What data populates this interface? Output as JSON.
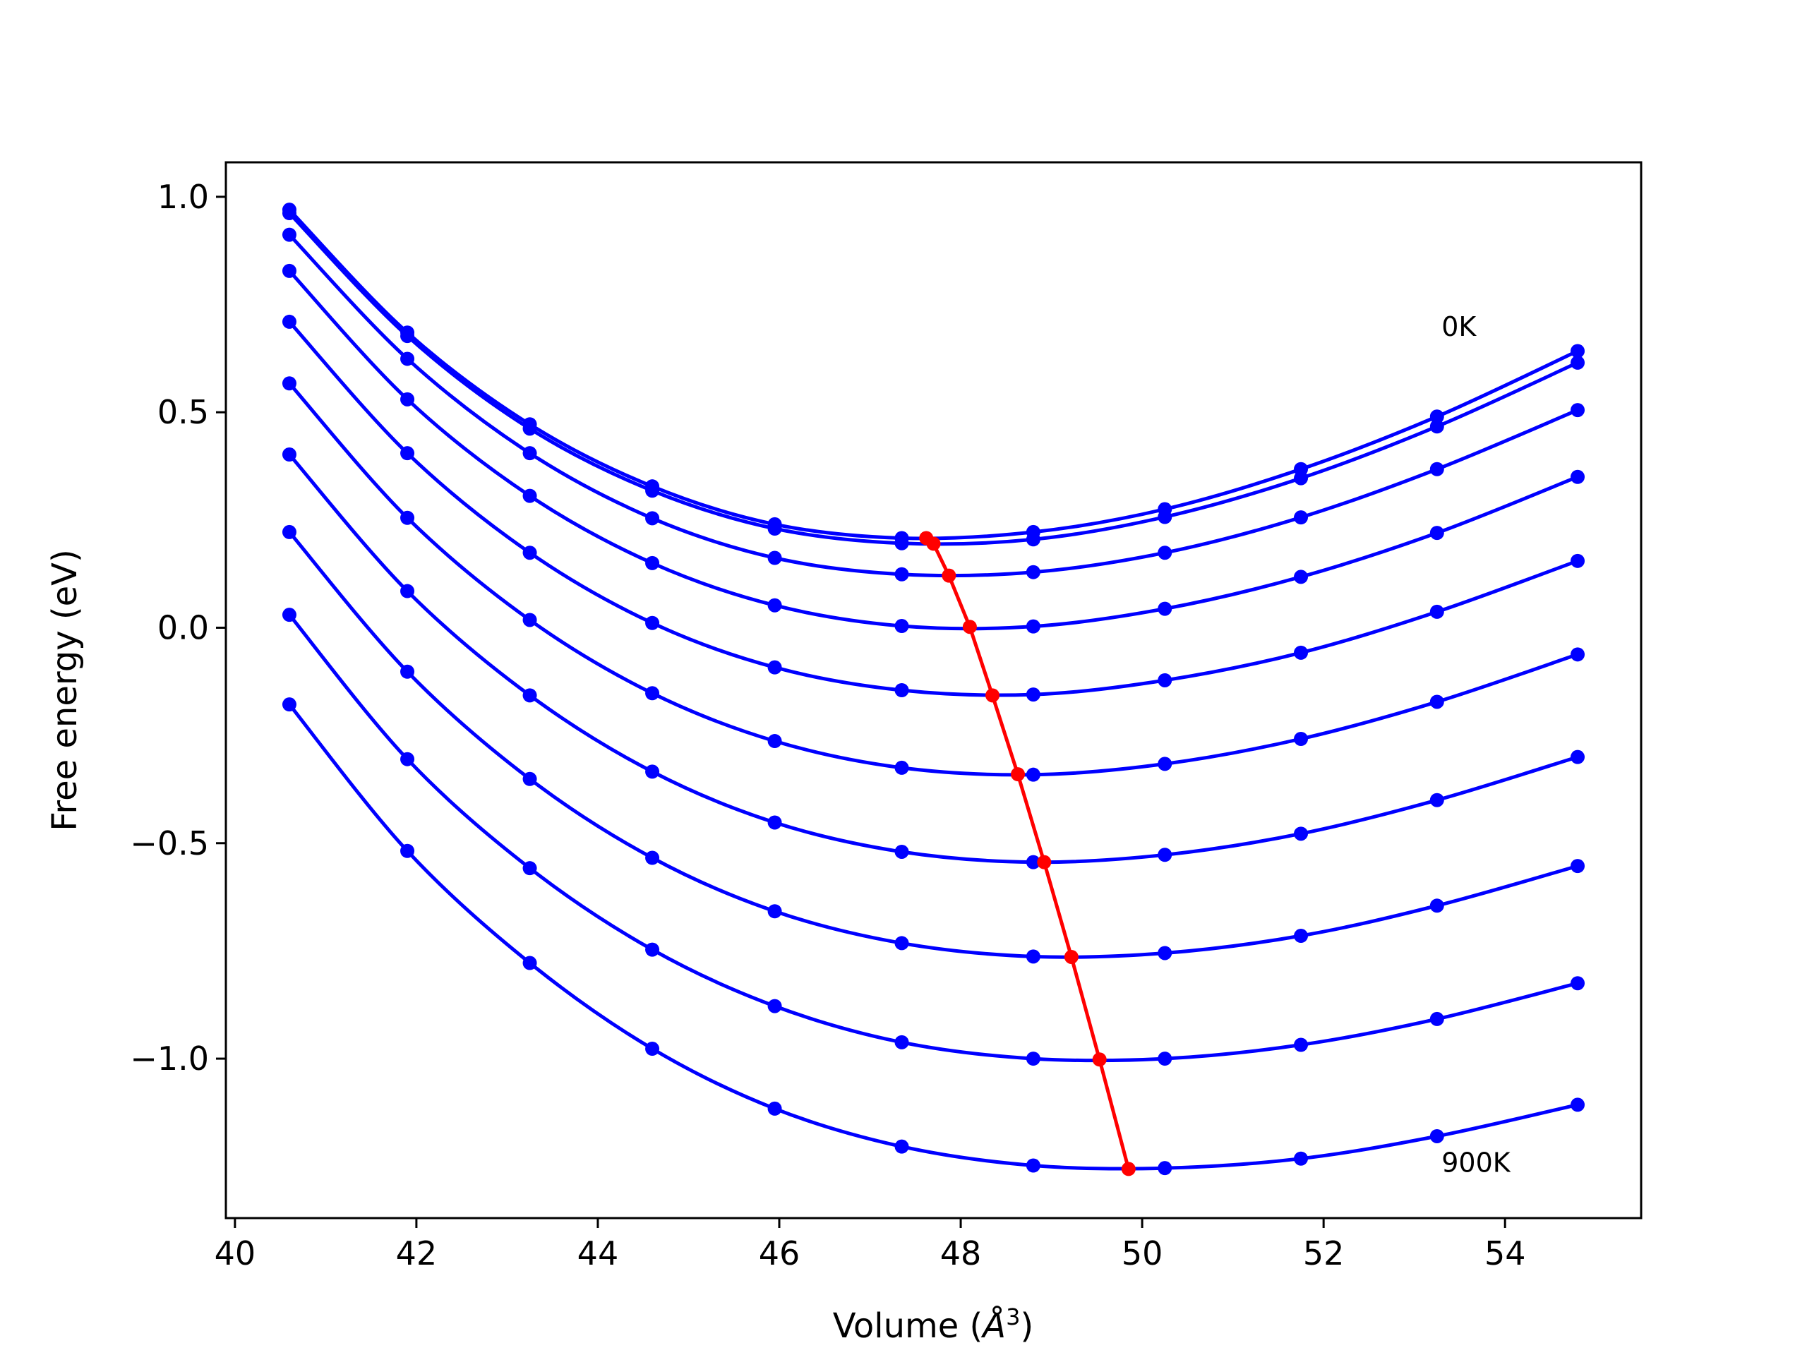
{
  "chart_data": {
    "type": "line",
    "title": "",
    "xlabel_prefix": "Volume (",
    "xlabel_italic": "Å",
    "xlabel_sup": "3",
    "xlabel_suffix": ")",
    "ylabel": "Free energy (eV)",
    "xlim": [
      39.9,
      55.5
    ],
    "ylim": [
      -1.37,
      1.08
    ],
    "xticks": [
      40,
      42,
      44,
      46,
      48,
      50,
      52,
      54
    ],
    "xtick_labels": [
      "40",
      "42",
      "44",
      "46",
      "48",
      "50",
      "52",
      "54"
    ],
    "yticks": [
      1.0,
      0.5,
      0.0,
      -0.5,
      -1.0
    ],
    "ytick_labels": [
      "1.0",
      "0.5",
      "0.0",
      "−0.5",
      "−1.0"
    ],
    "grid": false,
    "annotations": [
      {
        "text": "0K",
        "x": 53.3,
        "y": 0.7
      },
      {
        "text": "900K",
        "x": 53.3,
        "y": -1.24
      }
    ],
    "x": [
      40.6,
      41.9,
      43.25,
      44.6,
      45.95,
      47.35,
      48.8,
      50.25,
      51.75,
      53.25,
      54.8
    ],
    "series": [
      {
        "values": [
          0.97,
          0.685,
          0.472,
          0.328,
          0.24,
          0.208,
          0.222,
          0.275,
          0.368,
          0.49,
          0.642
        ]
      },
      {
        "values": [
          0.962,
          0.677,
          0.462,
          0.318,
          0.23,
          0.196,
          0.205,
          0.257,
          0.347,
          0.467,
          0.615
        ]
      },
      {
        "values": [
          0.912,
          0.624,
          0.405,
          0.254,
          0.162,
          0.124,
          0.129,
          0.174,
          0.256,
          0.368,
          0.505
        ]
      },
      {
        "values": [
          0.828,
          0.53,
          0.306,
          0.15,
          0.052,
          0.004,
          0.003,
          0.044,
          0.118,
          0.22,
          0.35
        ]
      },
      {
        "values": [
          0.71,
          0.405,
          0.174,
          0.011,
          -0.092,
          -0.145,
          -0.155,
          -0.122,
          -0.058,
          0.037,
          0.155
        ]
      },
      {
        "values": [
          0.567,
          0.255,
          0.018,
          -0.152,
          -0.263,
          -0.325,
          -0.341,
          -0.316,
          -0.258,
          -0.172,
          -0.062
        ]
      },
      {
        "values": [
          0.402,
          0.085,
          -0.157,
          -0.334,
          -0.452,
          -0.52,
          -0.544,
          -0.527,
          -0.478,
          -0.4,
          -0.3
        ]
      },
      {
        "values": [
          0.222,
          -0.102,
          -0.351,
          -0.534,
          -0.658,
          -0.732,
          -0.763,
          -0.755,
          -0.715,
          -0.645,
          -0.553
        ]
      },
      {
        "values": [
          0.03,
          -0.305,
          -0.558,
          -0.747,
          -0.878,
          -0.962,
          -1.0,
          -1.0,
          -0.968,
          -0.908,
          -0.825
        ]
      },
      {
        "values": [
          -0.178,
          -0.518,
          -0.778,
          -0.977,
          -1.116,
          -1.204,
          -1.248,
          -1.254,
          -1.232,
          -1.18,
          -1.107
        ]
      }
    ],
    "minima": {
      "x": [
        47.62,
        47.7,
        47.87,
        48.1,
        48.35,
        48.63,
        48.92,
        49.22,
        49.53,
        49.85
      ],
      "y": [
        0.208,
        0.195,
        0.121,
        0.002,
        -0.157,
        -0.34,
        -0.544,
        -0.764,
        -1.002,
        -1.256
      ]
    },
    "colors": {
      "series": "#0000ff",
      "minima": "#ff0000",
      "axes": "#000000"
    }
  }
}
